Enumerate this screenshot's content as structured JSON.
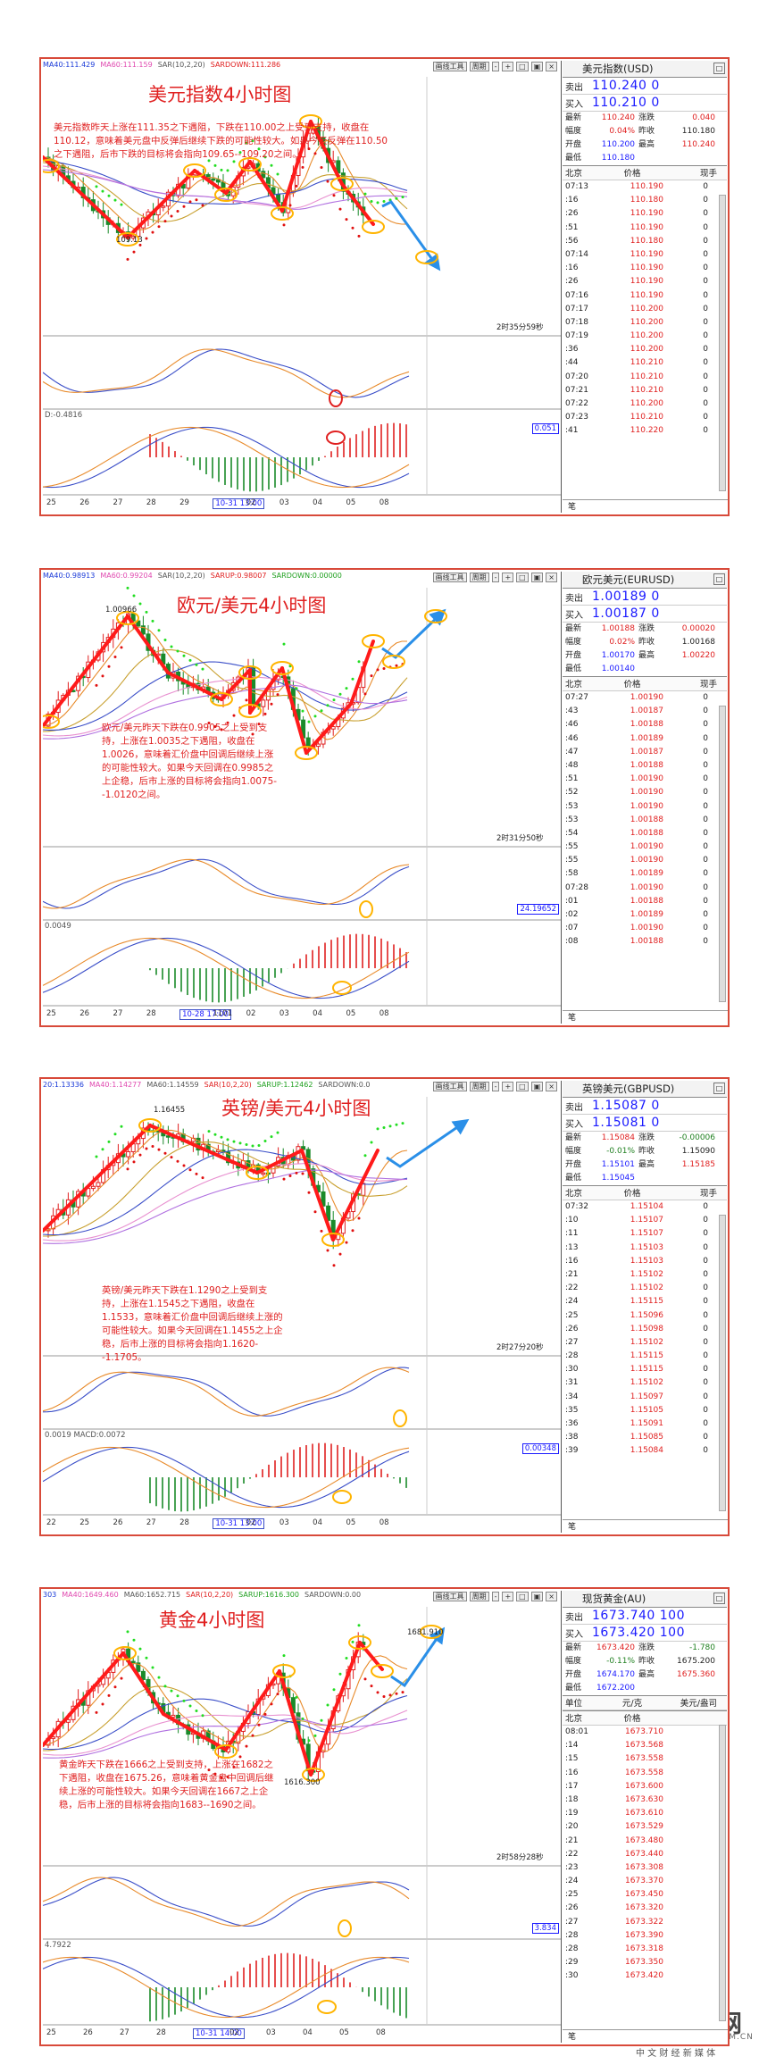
{
  "panels": [
    {
      "id": "usd",
      "title": "美元指数4小时图",
      "annotation": "美元指数昨天上涨在111.35之下遇阻，下跌在110.00之上受到支持，收盘在110.12，意味着美元盘中反弹后继续下跌的可能性较大。如果今天反弹在110.50之下遇阻，后市下跌的目标将会指向109.65--109.20之间。",
      "topbar": [
        "MA40:111.429",
        "MA60:111.159",
        "SAR(10,2,20)",
        "SARDOWN:111.286"
      ],
      "menu": [
        "画线工具",
        "周期"
      ],
      "peak_label": "109.13",
      "countdown": "2时35分59秒",
      "osc_label": "D:-0.4816",
      "box_value": "0.051",
      "xaxis": [
        "25",
        "26",
        "27",
        "28",
        "29",
        "10-31 13:00",
        "02",
        "03",
        "04",
        "05",
        "08"
      ],
      "quote": {
        "name": "美元指数(USD)",
        "sell_l": "卖出",
        "sell": "110.240",
        "sell_q": "0",
        "buy_l": "买入",
        "buy": "110.210",
        "buy_q": "0",
        "stats": [
          [
            "最新",
            "110.240",
            "涨跌",
            "0.040"
          ],
          [
            "幅度",
            "0.04%",
            "昨收",
            "110.180"
          ],
          [
            "开盘",
            "110.200",
            "最高",
            "110.240"
          ],
          [
            "最低",
            "110.180",
            "",
            ""
          ]
        ],
        "head": [
          "北京",
          "价格",
          "现手"
        ],
        "ticks": [
          [
            "07:13",
            "110.190",
            "0"
          ],
          [
            ":16",
            "110.180",
            "0"
          ],
          [
            ":26",
            "110.190",
            "0"
          ],
          [
            ":51",
            "110.190",
            "0"
          ],
          [
            ":56",
            "110.180",
            "0"
          ],
          [
            "07:14",
            "110.190",
            "0"
          ],
          [
            ":16",
            "110.190",
            "0"
          ],
          [
            ":26",
            "110.190",
            "0"
          ],
          [
            "07:16",
            "110.190",
            "0"
          ],
          [
            "07:17",
            "110.200",
            "0"
          ],
          [
            "07:18",
            "110.200",
            "0"
          ],
          [
            "07:19",
            "110.200",
            "0"
          ],
          [
            ":36",
            "110.200",
            "0"
          ],
          [
            ":44",
            "110.210",
            "0"
          ],
          [
            "07:20",
            "110.210",
            "0"
          ],
          [
            "07:21",
            "110.210",
            "0"
          ],
          [
            "07:22",
            "110.200",
            "0"
          ],
          [
            "07:23",
            "110.210",
            "0"
          ],
          [
            ":41",
            "110.220",
            "0"
          ]
        ],
        "foot": "笔"
      }
    },
    {
      "id": "eur",
      "title": "欧元/美元4小时图",
      "annotation": "欧元/美元昨天下跌在0.9905之上受到支持，上涨在1.0035之下遇阻，收盘在1.0026，意味着汇价盘中回调后继续上涨的可能性较大。如果今天回调在0.9985之上企稳，后市上涨的目标将会指向1.0075--1.0120之间。",
      "topbar": [
        "MA40:0.98913",
        "MA60:0.99204",
        "SAR(10,2,20)",
        "SARUP:0.98007",
        "SARDOWN:0.00000"
      ],
      "menu": [
        "画线工具",
        "周期"
      ],
      "peak_label": "1.00966",
      "countdown": "2时31分50秒",
      "osc_label": "0.0049",
      "box_value": "24.19652",
      "xaxis": [
        "25",
        "26",
        "27",
        "28",
        "10-28 17:00",
        "1101",
        "02",
        "03",
        "04",
        "05",
        "08"
      ],
      "quote": {
        "name": "欧元美元(EURUSD)",
        "sell_l": "卖出",
        "sell": "1.00189",
        "sell_q": "0",
        "buy_l": "买入",
        "buy": "1.00187",
        "buy_q": "0",
        "stats": [
          [
            "最新",
            "1.00188",
            "涨跌",
            "0.00020"
          ],
          [
            "幅度",
            "0.02%",
            "昨收",
            "1.00168"
          ],
          [
            "开盘",
            "1.00170",
            "最高",
            "1.00220"
          ],
          [
            "最低",
            "1.00140",
            "",
            ""
          ]
        ],
        "head": [
          "北京",
          "价格",
          "现手"
        ],
        "ticks": [
          [
            "07:27",
            "1.00190",
            "0"
          ],
          [
            ":43",
            "1.00187",
            "0"
          ],
          [
            ":46",
            "1.00188",
            "0"
          ],
          [
            ":46",
            "1.00189",
            "0"
          ],
          [
            ":47",
            "1.00187",
            "0"
          ],
          [
            ":48",
            "1.00188",
            "0"
          ],
          [
            ":51",
            "1.00190",
            "0"
          ],
          [
            ":52",
            "1.00190",
            "0"
          ],
          [
            ":53",
            "1.00190",
            "0"
          ],
          [
            ":53",
            "1.00188",
            "0"
          ],
          [
            ":54",
            "1.00188",
            "0"
          ],
          [
            ":55",
            "1.00190",
            "0"
          ],
          [
            ":55",
            "1.00190",
            "0"
          ],
          [
            ":58",
            "1.00189",
            "0"
          ],
          [
            "07:28",
            "1.00190",
            "0"
          ],
          [
            ":01",
            "1.00188",
            "0"
          ],
          [
            ":02",
            "1.00189",
            "0"
          ],
          [
            ":07",
            "1.00190",
            "0"
          ],
          [
            ":08",
            "1.00188",
            "0"
          ]
        ],
        "foot": "笔"
      }
    },
    {
      "id": "gbp",
      "title": "英镑/美元4小时图",
      "annotation": "英镑/美元昨天下跌在1.1290之上受到支持，上涨在1.1545之下遇阻，收盘在1.1533，意味着汇价盘中回调后继续上涨的可能性较大。如果今天回调在1.1455之上企稳，后市上涨的目标将会指向1.1620--1.1705。",
      "topbar": [
        "20:1.13336",
        "MA40:1.14277",
        "MA60:1.14559",
        "SAR(10,2,20)",
        "SARUP:1.12462",
        "SARDOWN:0.0"
      ],
      "menu": [
        "画线工具",
        "周期"
      ],
      "peak_label": "1.16455",
      "countdown": "2时27分20秒",
      "osc_label": "0.0019  MACD:0.0072",
      "box_value": "0.00348",
      "xaxis": [
        "22",
        "25",
        "26",
        "27",
        "28",
        "10-31 13:00",
        "02",
        "03",
        "04",
        "05",
        "08"
      ],
      "quote": {
        "name": "英镑美元(GBPUSD)",
        "sell_l": "卖出",
        "sell": "1.15087",
        "sell_q": "0",
        "buy_l": "买入",
        "buy": "1.15081",
        "buy_q": "0",
        "stats": [
          [
            "最新",
            "1.15084",
            "涨跌",
            "-0.00006"
          ],
          [
            "幅度",
            "-0.01%",
            "昨收",
            "1.15090"
          ],
          [
            "开盘",
            "1.15101",
            "最高",
            "1.15185"
          ],
          [
            "最低",
            "1.15045",
            "",
            ""
          ]
        ],
        "head": [
          "北京",
          "价格",
          "现手"
        ],
        "ticks": [
          [
            "07:32",
            "1.15104",
            "0"
          ],
          [
            ":10",
            "1.15107",
            "0"
          ],
          [
            ":11",
            "1.15107",
            "0"
          ],
          [
            ":13",
            "1.15103",
            "0"
          ],
          [
            ":16",
            "1.15103",
            "0"
          ],
          [
            ":21",
            "1.15102",
            "0"
          ],
          [
            ":22",
            "1.15102",
            "0"
          ],
          [
            ":24",
            "1.15115",
            "0"
          ],
          [
            ":25",
            "1.15096",
            "0"
          ],
          [
            ":26",
            "1.15098",
            "0"
          ],
          [
            ":27",
            "1.15102",
            "0"
          ],
          [
            ":28",
            "1.15115",
            "0"
          ],
          [
            ":30",
            "1.15115",
            "0"
          ],
          [
            ":31",
            "1.15102",
            "0"
          ],
          [
            ":34",
            "1.15097",
            "0"
          ],
          [
            ":35",
            "1.15105",
            "0"
          ],
          [
            ":36",
            "1.15091",
            "0"
          ],
          [
            ":38",
            "1.15085",
            "0"
          ],
          [
            ":39",
            "1.15084",
            "0"
          ]
        ],
        "foot": "笔"
      }
    },
    {
      "id": "gold",
      "title": "黄金4小时图",
      "annotation": "黄金昨天下跌在1666之上受到支持，上涨在1682之下遇阻，收盘在1675.26，意味着黄金盘中回调后继续上涨的可能性较大。如果今天回调在1667之上企稳，后市上涨的目标将会指向1683--1690之间。",
      "topbar": [
        "303",
        "MA40:1649.460",
        "MA60:1652.715",
        "SAR(10,2,20)",
        "SARUP:1616.300",
        "SARDOWN:0.00"
      ],
      "menu": [
        "画线工具",
        "周期"
      ],
      "peak_label": "1681.910",
      "low_label": "1616.300",
      "countdown": "2时58分28秒",
      "osc_label": "4.7922",
      "box_value": "3.834",
      "xaxis": [
        "25",
        "26",
        "27",
        "28",
        "10-31 14:00",
        "02",
        "03",
        "04",
        "05",
        "08"
      ],
      "quote": {
        "name": "现货黄金(AU)",
        "sell_l": "卖出",
        "sell": "1673.740",
        "sell_q": "100",
        "buy_l": "买入",
        "buy": "1673.420",
        "buy_q": "100",
        "stats": [
          [
            "最新",
            "1673.420",
            "涨跌",
            "-1.780"
          ],
          [
            "幅度",
            "-0.11%",
            "昨收",
            "1675.200"
          ],
          [
            "开盘",
            "1674.170",
            "最高",
            "1675.360"
          ],
          [
            "最低",
            "1672.200",
            "",
            ""
          ]
        ],
        "head": [
          "单位",
          "元/克",
          "美元/盎司"
        ],
        "subhead": [
          "北京",
          "价格"
        ],
        "ticks": [
          [
            "08:01",
            "1673.710",
            ""
          ],
          [
            ":14",
            "1673.568",
            ""
          ],
          [
            ":15",
            "1673.558",
            ""
          ],
          [
            ":16",
            "1673.558",
            ""
          ],
          [
            ":17",
            "1673.600",
            ""
          ],
          [
            ":18",
            "1673.630",
            ""
          ],
          [
            ":19",
            "1673.610",
            ""
          ],
          [
            ":20",
            "1673.529",
            ""
          ],
          [
            ":21",
            "1673.480",
            ""
          ],
          [
            ":22",
            "1673.440",
            ""
          ],
          [
            ":23",
            "1673.308",
            ""
          ],
          [
            ":24",
            "1673.370",
            ""
          ],
          [
            ":25",
            "1673.450",
            ""
          ],
          [
            ":26",
            "1673.320",
            ""
          ],
          [
            ":27",
            "1673.322",
            ""
          ],
          [
            ":28",
            "1673.390",
            ""
          ],
          [
            ":28",
            "1673.318",
            ""
          ],
          [
            ":29",
            "1673.350",
            ""
          ],
          [
            ":30",
            "1673.420",
            ""
          ]
        ],
        "foot": "笔"
      }
    }
  ],
  "logo": {
    "brand": "中金网",
    "domain": "CNGOLD.COM.CN",
    "slogan": "中 文 财 经 新 媒 体"
  },
  "colors": {
    "border": "#d84a3a",
    "up": "#e02020",
    "down": "#1a8a2a",
    "arrow_red": "#ff1a1a",
    "arrow_blue": "#2a8fe8",
    "circle": "#ffb400",
    "sar": "#e01010",
    "sar_green": "#22dd22",
    "ma_blue": "#3a4ec8",
    "ma_pink": "#e890d0",
    "ma_orange": "#e88a2a"
  },
  "chart_data": [
    {
      "type": "candlestick",
      "title": "美元指数4小时图",
      "x": [
        "25",
        "26",
        "27",
        "28",
        "29",
        "10-31",
        "02",
        "03",
        "04",
        "05",
        "08"
      ],
      "key_levels": {
        "resistance": 111.35,
        "support": 110.0,
        "close": 110.12,
        "rebound_limit": 110.5,
        "target_low": [
          109.65,
          109.2
        ],
        "low_label": 109.13
      }
    },
    {
      "type": "candlestick",
      "title": "欧元/美元4小时图",
      "x": [
        "25",
        "26",
        "27",
        "28",
        "10-28",
        "1101",
        "02",
        "03",
        "04",
        "05",
        "08"
      ],
      "key_levels": {
        "support": 0.9905,
        "resistance": 1.0035,
        "close": 1.0026,
        "pullback_hold": 0.9985,
        "target": [
          1.0075,
          1.012
        ],
        "high_label": 1.00966
      }
    },
    {
      "type": "candlestick",
      "title": "英镑/美元4小时图",
      "x": [
        "22",
        "25",
        "26",
        "27",
        "28",
        "10-31",
        "02",
        "03",
        "04",
        "05",
        "08"
      ],
      "key_levels": {
        "support": 1.129,
        "resistance": 1.1545,
        "close": 1.1533,
        "pullback_hold": 1.1455,
        "target": [
          1.162,
          1.1705
        ],
        "high_label": 1.16455
      }
    },
    {
      "type": "candlestick",
      "title": "黄金4小时图",
      "x": [
        "25",
        "26",
        "27",
        "28",
        "10-31",
        "02",
        "03",
        "04",
        "05",
        "08"
      ],
      "key_levels": {
        "support": 1666,
        "resistance": 1682,
        "close": 1675.26,
        "pullback_hold": 1667,
        "target": [
          1683,
          1690
        ],
        "high_label": 1681.91,
        "low_label": 1616.3
      }
    }
  ]
}
